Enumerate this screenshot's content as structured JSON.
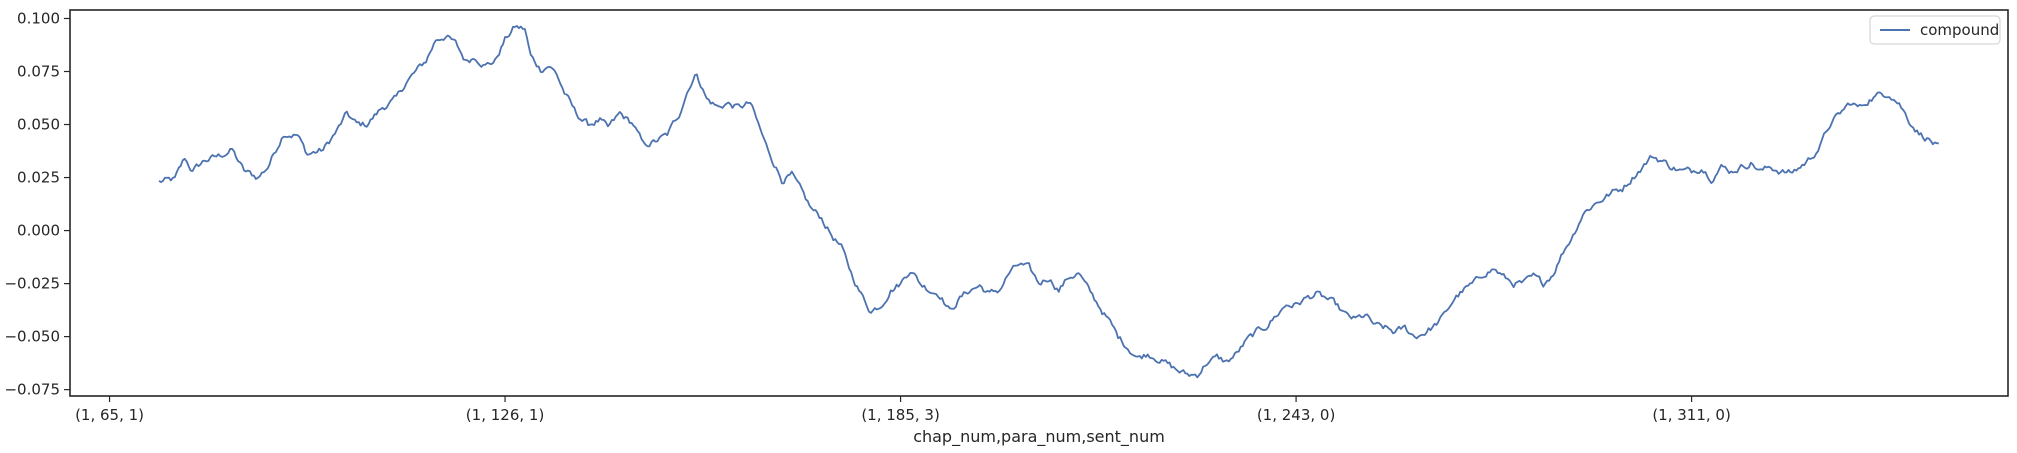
{
  "chart_data": {
    "type": "line",
    "title": "",
    "xlabel": "chap_num,para_num,sent_num",
    "ylabel": "",
    "x_ticks": [
      {
        "pos": 0,
        "label": "(1, 65, 1)"
      },
      {
        "pos": 200,
        "label": "(1, 126, 1)"
      },
      {
        "pos": 400,
        "label": "(1, 185, 3)"
      },
      {
        "pos": 600,
        "label": "(1, 243, 0)"
      },
      {
        "pos": 800,
        "label": "(1, 311, 0)"
      }
    ],
    "xlim": [
      -20,
      960
    ],
    "ylim": [
      -0.078,
      0.104
    ],
    "y_ticks": [
      -0.075,
      -0.05,
      -0.025,
      0.0,
      0.025,
      0.05,
      0.075,
      0.1
    ],
    "y_tick_labels": [
      "−0.075",
      "−0.050",
      "−0.025",
      "0.000",
      "0.025",
      "0.050",
      "0.075",
      "0.100"
    ],
    "grid": false,
    "legend_position": "top-right",
    "series": [
      {
        "name": "compound",
        "color": "#4c72b0",
        "x_start": 25,
        "x_end": 925,
        "anchors": [
          [
            25,
            0.023
          ],
          [
            33,
            0.024
          ],
          [
            38,
            0.034
          ],
          [
            42,
            0.028
          ],
          [
            48,
            0.033
          ],
          [
            55,
            0.035
          ],
          [
            62,
            0.038
          ],
          [
            68,
            0.028
          ],
          [
            75,
            0.025
          ],
          [
            80,
            0.03
          ],
          [
            88,
            0.046
          ],
          [
            95,
            0.045
          ],
          [
            100,
            0.036
          ],
          [
            108,
            0.038
          ],
          [
            115,
            0.047
          ],
          [
            120,
            0.055
          ],
          [
            125,
            0.05
          ],
          [
            130,
            0.05
          ],
          [
            138,
            0.058
          ],
          [
            145,
            0.062
          ],
          [
            150,
            0.07
          ],
          [
            155,
            0.075
          ],
          [
            160,
            0.08
          ],
          [
            165,
            0.09
          ],
          [
            170,
            0.092
          ],
          [
            175,
            0.088
          ],
          [
            180,
            0.08
          ],
          [
            185,
            0.082
          ],
          [
            190,
            0.078
          ],
          [
            195,
            0.08
          ],
          [
            200,
            0.09
          ],
          [
            205,
            0.096
          ],
          [
            210,
            0.095
          ],
          [
            213,
            0.082
          ],
          [
            218,
            0.076
          ],
          [
            222,
            0.078
          ],
          [
            226,
            0.074
          ],
          [
            230,
            0.065
          ],
          [
            236,
            0.055
          ],
          [
            242,
            0.05
          ],
          [
            248,
            0.052
          ],
          [
            252,
            0.048
          ],
          [
            258,
            0.055
          ],
          [
            265,
            0.05
          ],
          [
            270,
            0.04
          ],
          [
            276,
            0.042
          ],
          [
            282,
            0.045
          ],
          [
            288,
            0.055
          ],
          [
            293,
            0.068
          ],
          [
            297,
            0.074
          ],
          [
            302,
            0.062
          ],
          [
            308,
            0.058
          ],
          [
            312,
            0.06
          ],
          [
            318,
            0.058
          ],
          [
            324,
            0.06
          ],
          [
            328,
            0.05
          ],
          [
            332,
            0.04
          ],
          [
            336,
            0.032
          ],
          [
            340,
            0.024
          ],
          [
            345,
            0.026
          ],
          [
            350,
            0.018
          ],
          [
            355,
            0.01
          ],
          [
            360,
            0.006
          ],
          [
            365,
            -0.002
          ],
          [
            370,
            -0.008
          ],
          [
            375,
            -0.02
          ],
          [
            380,
            -0.03
          ],
          [
            385,
            -0.038
          ],
          [
            390,
            -0.035
          ],
          [
            395,
            -0.028
          ],
          [
            400,
            -0.025
          ],
          [
            405,
            -0.018
          ],
          [
            410,
            -0.025
          ],
          [
            415,
            -0.028
          ],
          [
            420,
            -0.03
          ],
          [
            425,
            -0.038
          ],
          [
            430,
            -0.032
          ],
          [
            435,
            -0.028
          ],
          [
            440,
            -0.026
          ],
          [
            445,
            -0.03
          ],
          [
            450,
            -0.028
          ],
          [
            455,
            -0.02
          ],
          [
            460,
            -0.016
          ],
          [
            465,
            -0.018
          ],
          [
            470,
            -0.025
          ],
          [
            475,
            -0.022
          ],
          [
            480,
            -0.028
          ],
          [
            485,
            -0.022
          ],
          [
            490,
            -0.02
          ],
          [
            495,
            -0.028
          ],
          [
            500,
            -0.035
          ],
          [
            505,
            -0.042
          ],
          [
            510,
            -0.05
          ],
          [
            515,
            -0.055
          ],
          [
            520,
            -0.06
          ],
          [
            525,
            -0.058
          ],
          [
            530,
            -0.06
          ],
          [
            535,
            -0.063
          ],
          [
            540,
            -0.066
          ],
          [
            545,
            -0.068
          ],
          [
            550,
            -0.068
          ],
          [
            555,
            -0.062
          ],
          [
            560,
            -0.06
          ],
          [
            565,
            -0.062
          ],
          [
            570,
            -0.058
          ],
          [
            575,
            -0.052
          ],
          [
            580,
            -0.048
          ],
          [
            585,
            -0.045
          ],
          [
            590,
            -0.04
          ],
          [
            595,
            -0.035
          ],
          [
            600,
            -0.035
          ],
          [
            605,
            -0.032
          ],
          [
            610,
            -0.03
          ],
          [
            615,
            -0.032
          ],
          [
            620,
            -0.035
          ],
          [
            625,
            -0.04
          ],
          [
            630,
            -0.042
          ],
          [
            635,
            -0.04
          ],
          [
            640,
            -0.045
          ],
          [
            645,
            -0.046
          ],
          [
            650,
            -0.048
          ],
          [
            655,
            -0.046
          ],
          [
            660,
            -0.05
          ],
          [
            665,
            -0.048
          ],
          [
            670,
            -0.045
          ],
          [
            675,
            -0.04
          ],
          [
            680,
            -0.032
          ],
          [
            685,
            -0.028
          ],
          [
            690,
            -0.025
          ],
          [
            695,
            -0.02
          ],
          [
            700,
            -0.018
          ],
          [
            705,
            -0.022
          ],
          [
            710,
            -0.025
          ],
          [
            715,
            -0.025
          ],
          [
            720,
            -0.022
          ],
          [
            725,
            -0.025
          ],
          [
            730,
            -0.02
          ],
          [
            735,
            -0.01
          ],
          [
            740,
            -0.002
          ],
          [
            745,
            0.008
          ],
          [
            750,
            0.012
          ],
          [
            755,
            0.015
          ],
          [
            760,
            0.018
          ],
          [
            765,
            0.02
          ],
          [
            770,
            0.025
          ],
          [
            775,
            0.03
          ],
          [
            780,
            0.035
          ],
          [
            785,
            0.033
          ],
          [
            790,
            0.03
          ],
          [
            795,
            0.028
          ],
          [
            800,
            0.028
          ],
          [
            805,
            0.03
          ],
          [
            810,
            0.025
          ],
          [
            815,
            0.03
          ],
          [
            820,
            0.028
          ],
          [
            825,
            0.03
          ],
          [
            830,
            0.032
          ],
          [
            835,
            0.028
          ],
          [
            840,
            0.03
          ],
          [
            845,
            0.028
          ],
          [
            850,
            0.027
          ],
          [
            855,
            0.03
          ],
          [
            860,
            0.034
          ],
          [
            865,
            0.04
          ],
          [
            870,
            0.05
          ],
          [
            875,
            0.055
          ],
          [
            880,
            0.06
          ],
          [
            885,
            0.058
          ],
          [
            890,
            0.062
          ],
          [
            895,
            0.064
          ],
          [
            900,
            0.065
          ],
          [
            905,
            0.06
          ],
          [
            910,
            0.052
          ],
          [
            915,
            0.046
          ],
          [
            920,
            0.043
          ],
          [
            925,
            0.039
          ]
        ],
        "noise": 0.0028
      }
    ]
  }
}
